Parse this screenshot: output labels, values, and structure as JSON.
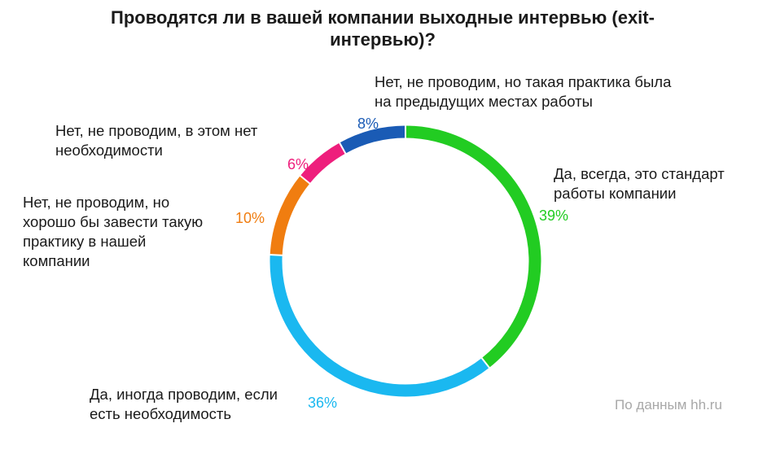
{
  "title": [
    "Проводятся ли в вашей компании выходные интервью (exit-",
    "интервью)?"
  ],
  "source": "По данным  hh.ru",
  "chart_data": {
    "type": "pie",
    "variant": "donut-ring",
    "title": "Проводятся ли в вашей компании выходные интервью (exit-интервью)?",
    "slices": [
      {
        "label": [
          "Да, всегда, это стандарт",
          "работы компании"
        ],
        "value": 39,
        "value_label": "39%",
        "color": "#22cc22"
      },
      {
        "label": [
          "Да, иногда проводим,  если",
          "есть необходимость"
        ],
        "value": 36,
        "value_label": "36%",
        "color": "#1ab8f0"
      },
      {
        "label": [
          "Нет, не проводим,  но",
          "хорошо бы завести такую",
          "практику в нашей",
          "компании"
        ],
        "value": 10,
        "value_label": "10%",
        "color": "#f07d10"
      },
      {
        "label": [
          "Нет, не проводим,  в этом нет",
          "необходимости"
        ],
        "value": 6,
        "value_label": "6%",
        "color": "#ee1e7c"
      },
      {
        "label": [
          "Нет, не проводим,  но такая практика была",
          "на предыдущих  местах работы"
        ],
        "value": 8,
        "value_label": "8%",
        "color": "#1a5bb5"
      }
    ]
  }
}
